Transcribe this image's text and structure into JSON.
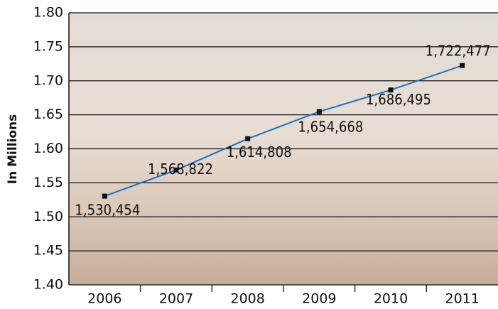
{
  "chart_data": {
    "type": "line",
    "y_label": "In Millions",
    "categories": [
      "2006",
      "2007",
      "2008",
      "2009",
      "2010",
      "2011"
    ],
    "series": [
      {
        "color": "#1f6fc0",
        "values": [
          1.530454,
          1.568822,
          1.614808,
          1.654668,
          1.686495,
          1.722477
        ],
        "value_labels": [
          "1,530,454",
          "1,568,822",
          "1,614,808",
          "1,654,668",
          "1,686,495",
          "1,722,477"
        ]
      }
    ],
    "ylim": [
      1.4,
      1.8
    ],
    "yticks": [
      {
        "value": 1.4,
        "label": "1.40"
      },
      1.45,
      {
        "value": 1.5,
        "label": "1.50"
      },
      1.55,
      {
        "value": 1.6,
        "label": "1.60"
      },
      1.65,
      {
        "value": 1.7,
        "label": "1.70"
      },
      1.75,
      {
        "value": 1.8,
        "label": "1.80"
      }
    ],
    "grid": true
  }
}
